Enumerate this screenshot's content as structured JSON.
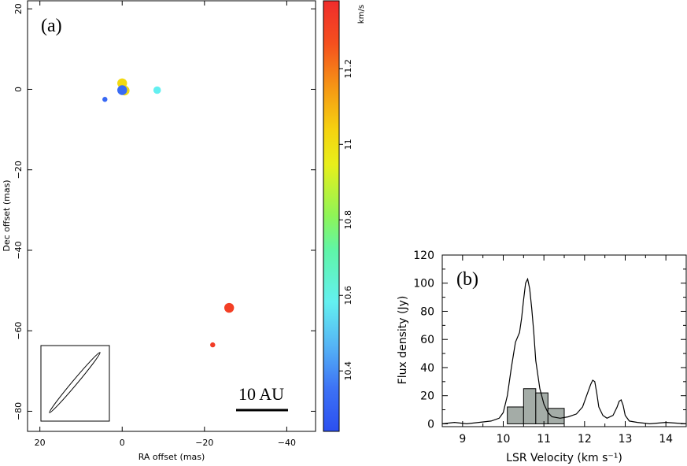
{
  "panel_a_label": "(a)",
  "panel_b_label": "(b)",
  "scalebar_label": "10 AU",
  "colorbar_unit": "km/s",
  "chart_data": [
    {
      "type": "scatter",
      "title": "",
      "xlabel": "RA offset (mas)",
      "ylabel": "Dec offset (mas)",
      "xlim": [
        23,
        -47
      ],
      "ylim": [
        -85,
        22
      ],
      "x_ticks": [
        20,
        0,
        -20,
        -40
      ],
      "x_tick_labels": [
        "20",
        "0",
        "−20",
        "−40"
      ],
      "y_ticks": [
        20,
        0,
        -20,
        -40,
        -60,
        -80
      ],
      "y_tick_labels": [
        "20",
        "0",
        "−20",
        "−40",
        "−60",
        "−80"
      ],
      "colorbar": {
        "range": [
          10.24,
          11.38
        ],
        "ticks": [
          10.4,
          10.6,
          10.8,
          11,
          11.2
        ],
        "tick_labels": [
          "10.4",
          "10.6",
          "10.8",
          "11",
          "11.2"
        ],
        "unit": "km/s"
      },
      "points": [
        {
          "x": 0.0,
          "y": 1.5,
          "velocity": 11.02,
          "size": "large"
        },
        {
          "x": -0.6,
          "y": -0.3,
          "velocity": 11.02,
          "size": "large"
        },
        {
          "x": 0.0,
          "y": -0.2,
          "velocity": 10.33,
          "size": "large"
        },
        {
          "x": 4.2,
          "y": -2.5,
          "velocity": 10.32,
          "size": "small"
        },
        {
          "x": -8.5,
          "y": -0.2,
          "velocity": 10.58,
          "size": "medium"
        },
        {
          "x": -26.0,
          "y": -54.3,
          "velocity": 11.32,
          "size": "large"
        },
        {
          "x": -22.0,
          "y": -63.5,
          "velocity": 11.33,
          "size": "small"
        }
      ]
    },
    {
      "type": "line",
      "title": "",
      "xlabel": "LSR Velocity (km s⁻¹)",
      "ylabel": "Flux density (Jy)",
      "xlim": [
        8.5,
        14.5
      ],
      "ylim": [
        -2,
        120
      ],
      "x_ticks": [
        9,
        10,
        11,
        12,
        13,
        14
      ],
      "x_tick_labels": [
        "9",
        "10",
        "11",
        "12",
        "13",
        "14"
      ],
      "y_ticks": [
        0,
        20,
        40,
        60,
        80,
        100,
        120
      ],
      "y_tick_labels": [
        "0",
        "20",
        "40",
        "60",
        "80",
        "100",
        "120"
      ],
      "series": [
        {
          "name": "spectrum",
          "x": [
            8.5,
            8.8,
            9.1,
            9.4,
            9.7,
            9.9,
            10.0,
            10.1,
            10.2,
            10.3,
            10.4,
            10.45,
            10.5,
            10.55,
            10.6,
            10.65,
            10.7,
            10.75,
            10.8,
            10.9,
            11.0,
            11.1,
            11.2,
            11.4,
            11.6,
            11.8,
            11.95,
            12.05,
            12.15,
            12.2,
            12.25,
            12.3,
            12.35,
            12.45,
            12.55,
            12.7,
            12.8,
            12.85,
            12.9,
            12.95,
            13.0,
            13.1,
            13.3,
            13.6,
            14.0,
            14.5
          ],
          "y": [
            0,
            1,
            0,
            1,
            2,
            4,
            8,
            20,
            40,
            58,
            65,
            75,
            88,
            100,
            103,
            96,
            82,
            65,
            45,
            25,
            14,
            8,
            5,
            4,
            5,
            7,
            12,
            20,
            28,
            31,
            30,
            22,
            12,
            6,
            4,
            6,
            12,
            16,
            17,
            13,
            6,
            2,
            1,
            0,
            1,
            0
          ]
        }
      ],
      "histogram": {
        "bin_edges": [
          10.1,
          10.5,
          10.8,
          11.1,
          11.5
        ],
        "values": [
          12,
          25,
          22,
          11
        ]
      }
    }
  ]
}
